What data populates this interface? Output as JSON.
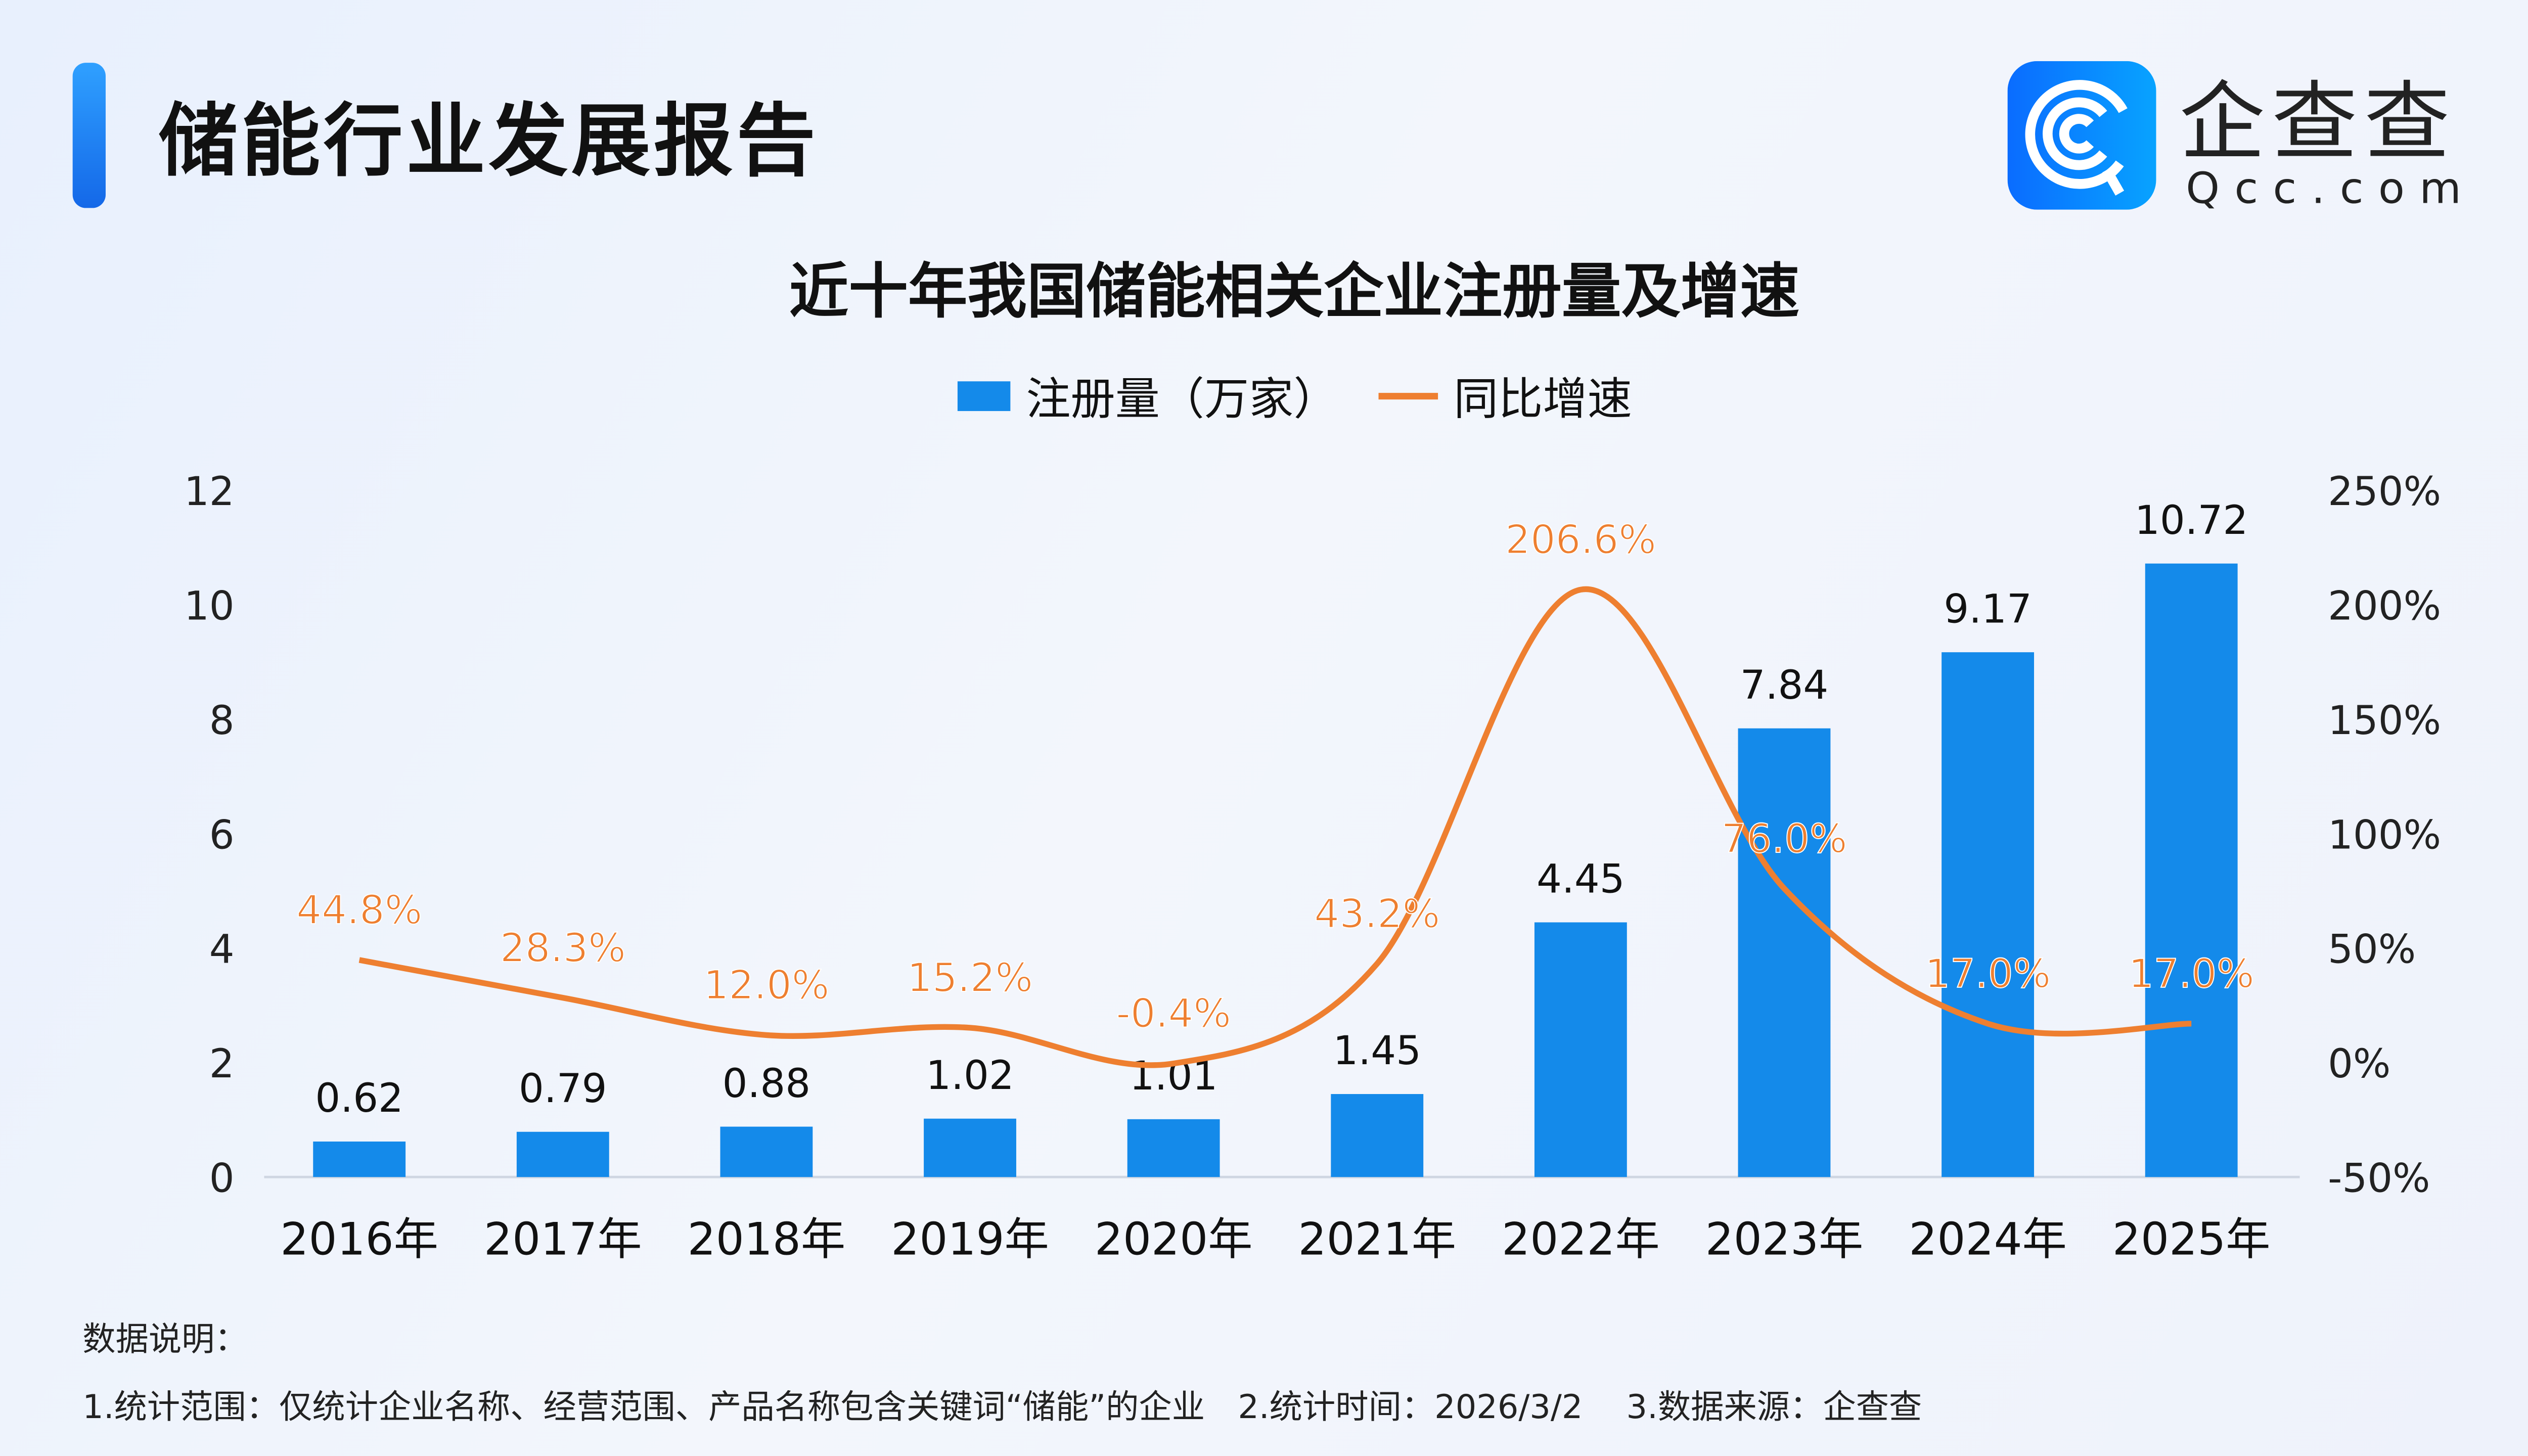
{
  "header": {
    "title": "储能行业发展报告",
    "logo": {
      "name": "企查查",
      "domain": "Qcc.com",
      "brand_color": "#1677ff"
    }
  },
  "chart_data": {
    "type": "bar+line",
    "title": "近十年我国储能相关企业注册量及增速",
    "categories": [
      "2016年",
      "2017年",
      "2018年",
      "2019年",
      "2020年",
      "2021年",
      "2022年",
      "2023年",
      "2024年",
      "2025年"
    ],
    "series": [
      {
        "name": "注册量（万家）",
        "type": "bar",
        "axis": "left",
        "color": "#148aea",
        "values": [
          0.62,
          0.79,
          0.88,
          1.02,
          1.01,
          1.45,
          4.45,
          7.84,
          9.17,
          10.72
        ],
        "labels": [
          "0.62",
          "0.79",
          "0.88",
          "1.02",
          "1.01",
          "1.45",
          "4.45",
          "7.84",
          "9.17",
          "10.72"
        ]
      },
      {
        "name": "同比增速",
        "type": "line",
        "axis": "right",
        "color": "#ee7f30",
        "values": [
          44.8,
          28.3,
          12.0,
          15.2,
          -0.4,
          43.2,
          206.6,
          76.0,
          17.0,
          17.0
        ],
        "labels": [
          "44.8%",
          "28.3%",
          "12.0%",
          "15.2%",
          "-0.4%",
          "43.2%",
          "206.6%",
          "76.0%",
          "17.0%",
          "17.0%"
        ]
      }
    ],
    "y_left": {
      "range": [
        0,
        12
      ],
      "ticks": [
        "0",
        "2",
        "4",
        "6",
        "8",
        "10",
        "12"
      ]
    },
    "y_right": {
      "range": [
        -50,
        250
      ],
      "ticks": [
        "-50%",
        "0%",
        "50%",
        "100%",
        "150%",
        "200%",
        "250%"
      ]
    },
    "legend_position": "top-center",
    "grid": false
  },
  "footer": {
    "heading": "数据说明：",
    "note": "1.统计范围：仅统计企业名称、经营范围、产品名称包含关键词“储能”的企业　2.统计时间：2026/3/2　 3.数据来源：企查查"
  }
}
